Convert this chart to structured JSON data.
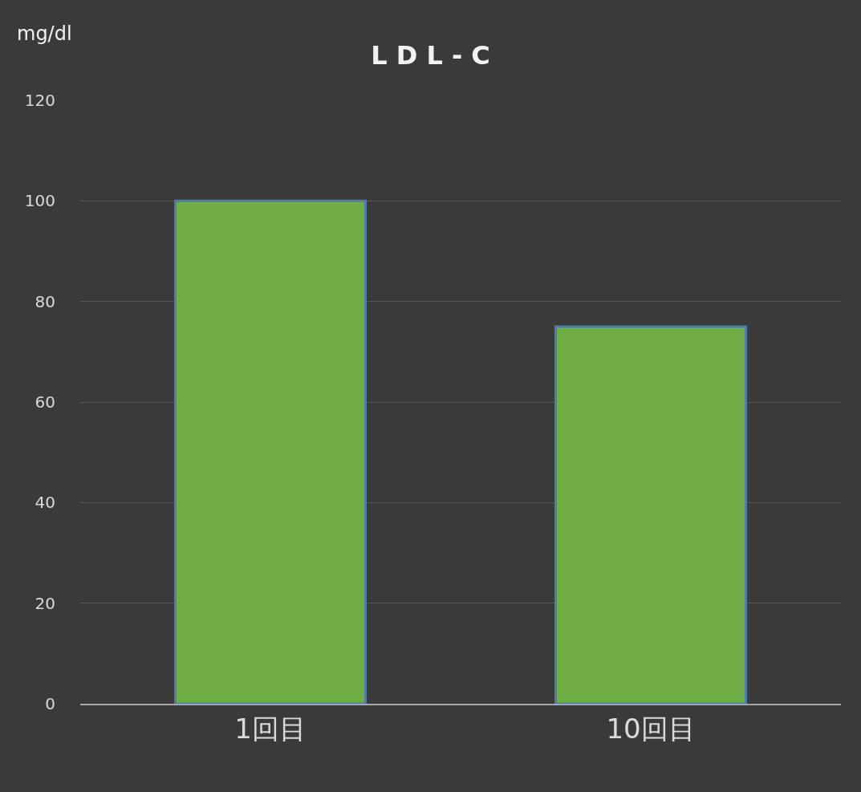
{
  "chart_data": {
    "type": "bar",
    "title": "L D L - C",
    "ylabel": "mg/dl",
    "categories": [
      "1回目",
      "10回目"
    ],
    "values": [
      100,
      75
    ],
    "color": "#70ad47",
    "ylim": [
      0,
      120
    ],
    "yticks": [
      0,
      20,
      40,
      60,
      80,
      100,
      120
    ],
    "grid": "y",
    "legend": false
  }
}
